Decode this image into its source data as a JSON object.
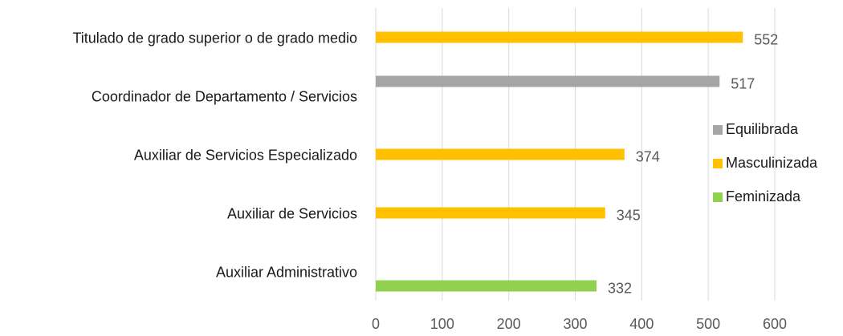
{
  "chart_data": {
    "type": "hbar",
    "categories": [
      "Titulado de grado superior o de grado medio",
      "Coordinador de Departamento / Servicios",
      "Auxiliar de Servicios Especializado",
      "Auxiliar de Servicios",
      "Auxiliar Administrativo"
    ],
    "series": [
      {
        "name": "Equilibrada",
        "color": "#a5a5a5",
        "values": [
          null,
          517,
          null,
          null,
          null
        ]
      },
      {
        "name": "Masculinizada",
        "color": "#ffc000",
        "values": [
          552,
          null,
          374,
          345,
          null
        ]
      },
      {
        "name": "Feminizada",
        "color": "#92d050",
        "values": [
          null,
          null,
          null,
          null,
          332
        ]
      }
    ],
    "xlim": [
      0,
      600
    ],
    "xticks": [
      0,
      100,
      200,
      300,
      400,
      500,
      600
    ],
    "grid": true,
    "legend": "right"
  }
}
